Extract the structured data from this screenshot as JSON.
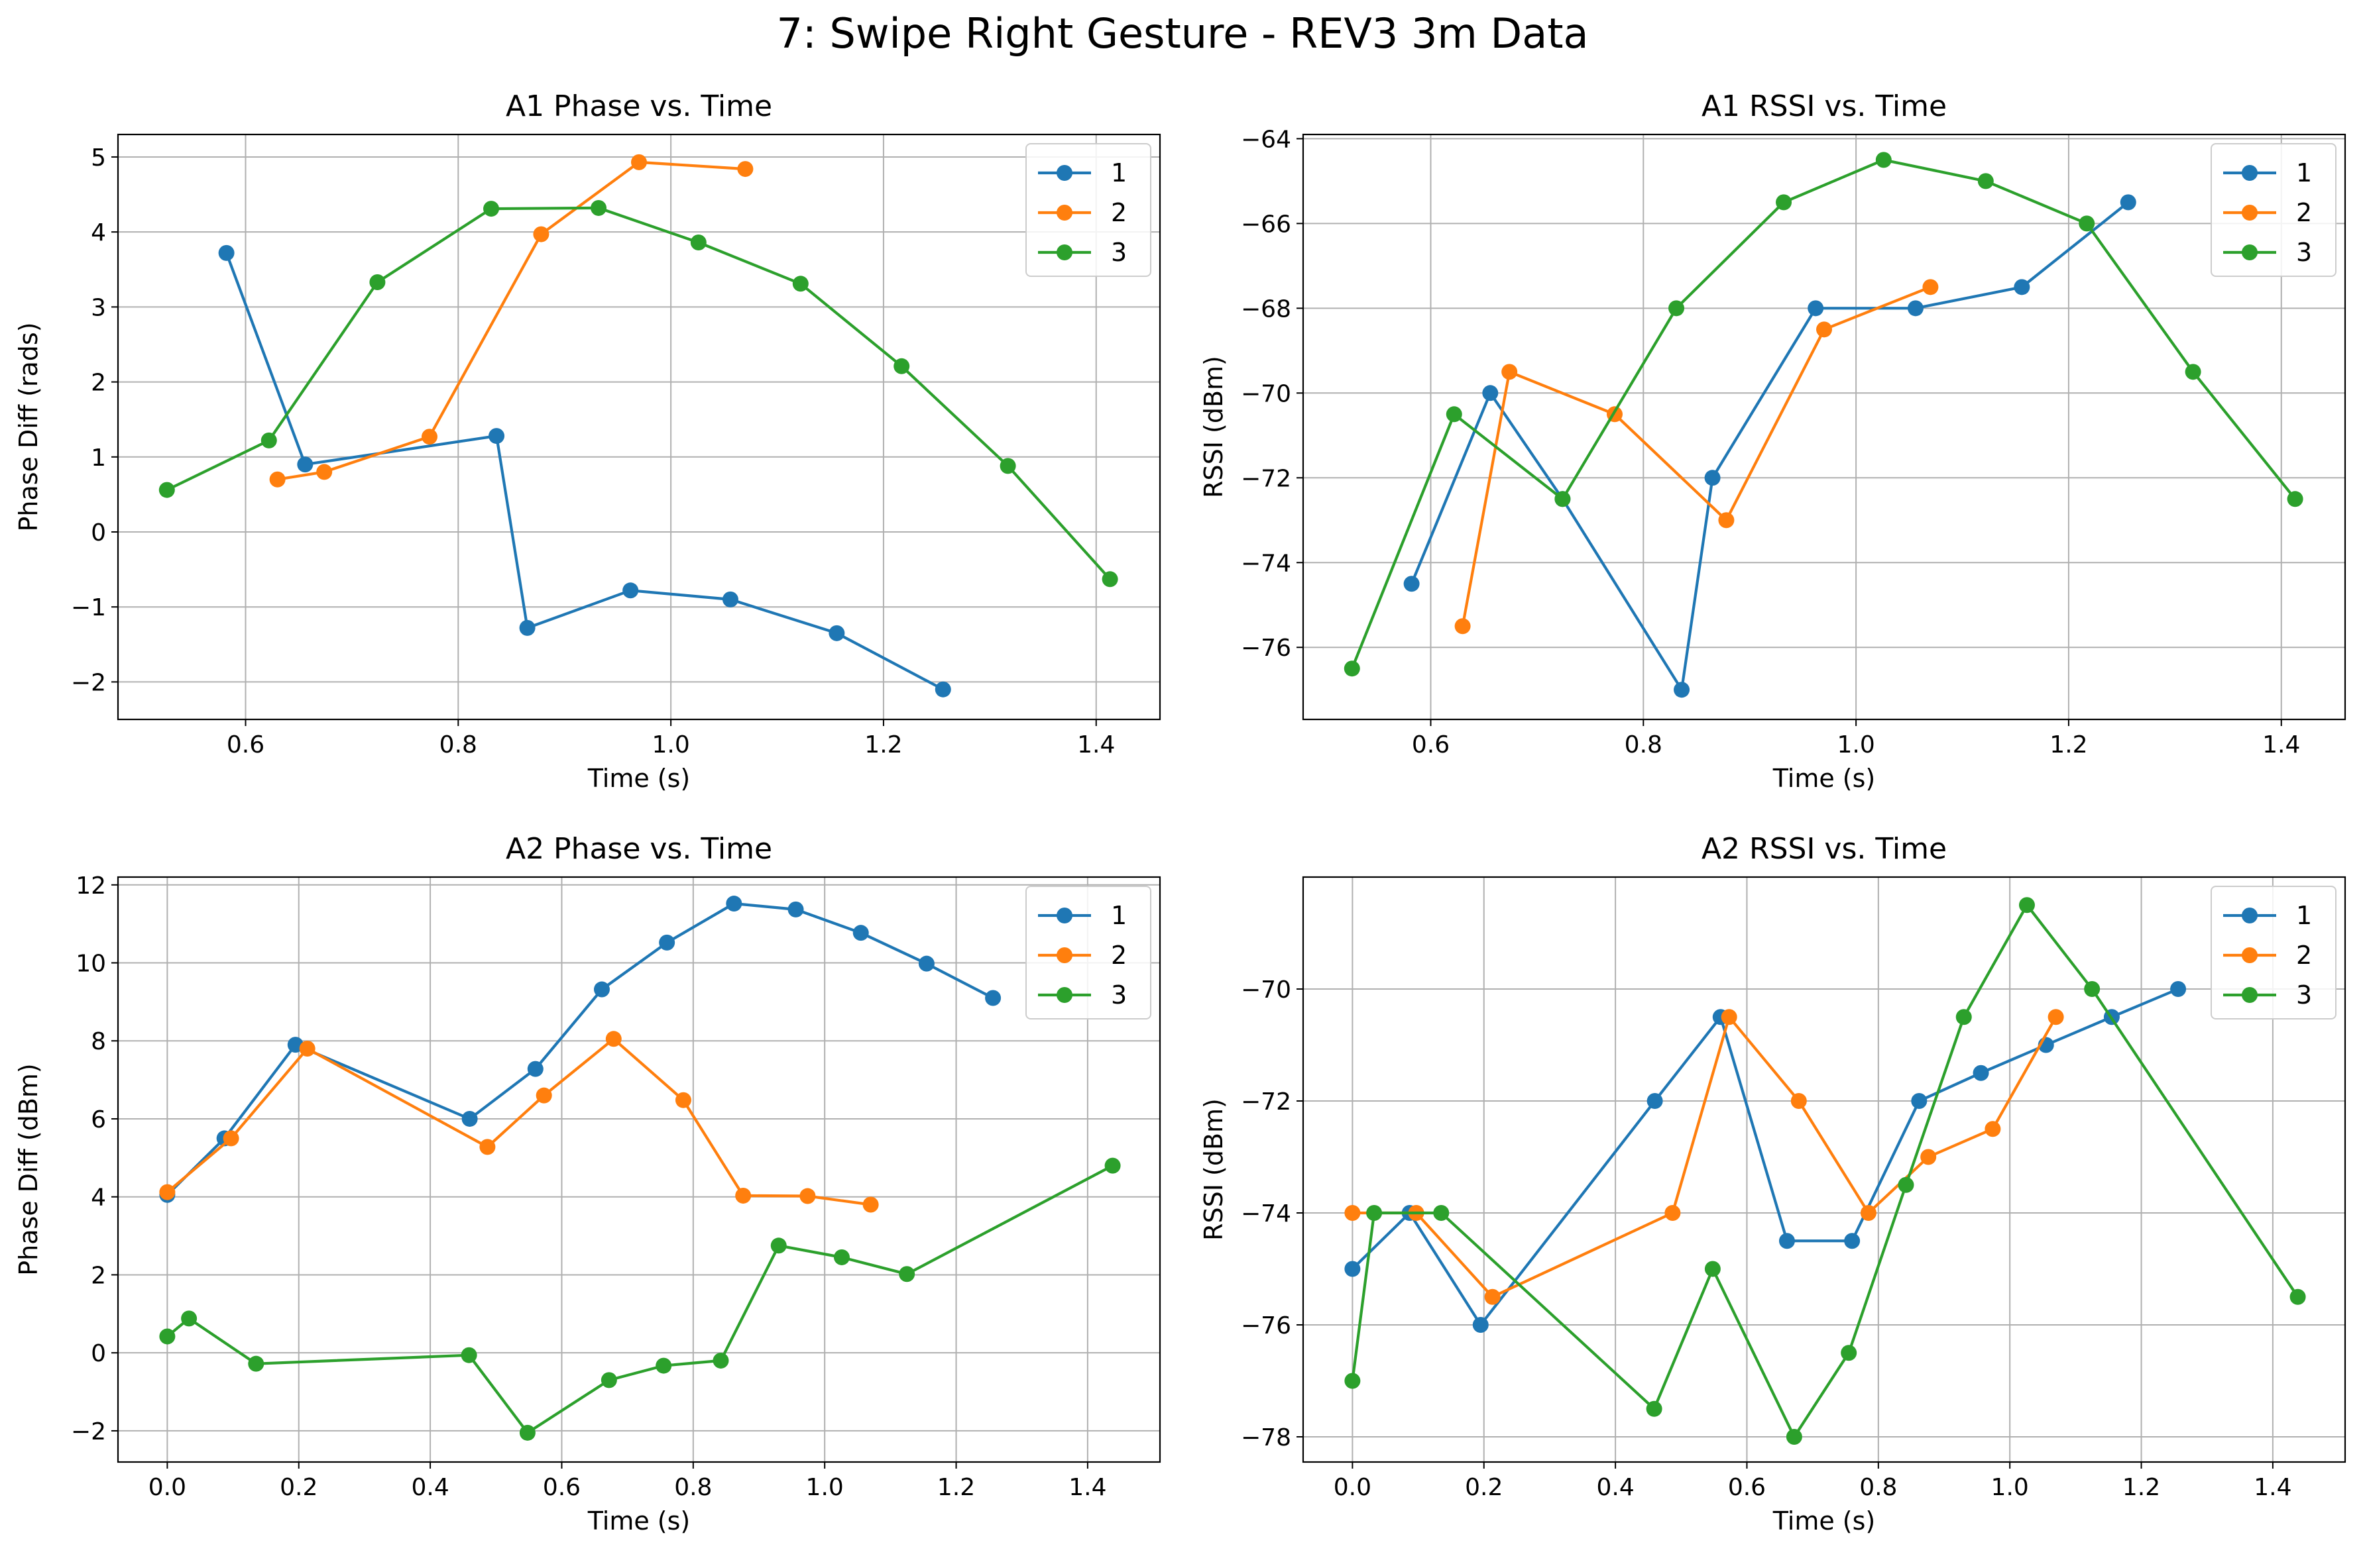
{
  "figure": {
    "title": "7: Swipe Right Gesture - REV3 3m Data"
  },
  "colors": {
    "series_1": "#1f77b4",
    "series_2": "#ff7f0e",
    "series_3": "#2ca02c",
    "grid": "#b0b0b0",
    "axes": "#000000"
  },
  "chart_data": [
    {
      "id": "a1-phase",
      "type": "line",
      "title": "A1 Phase vs. Time",
      "xlabel": "Time (s)",
      "ylabel": "Phase Diff (rads)",
      "xlim": [
        0.48,
        1.46
      ],
      "ylim": [
        -2.5,
        5.3
      ],
      "xticks": [
        0.6,
        0.8,
        1.0,
        1.2,
        1.4
      ],
      "xtick_labels": [
        "0.6",
        "0.8",
        "1.0",
        "1.2",
        "1.4"
      ],
      "yticks": [
        -2,
        -1,
        0,
        1,
        2,
        3,
        4,
        5
      ],
      "ytick_labels": [
        "−2",
        "−1",
        "0",
        "1",
        "2",
        "3",
        "4",
        "5"
      ],
      "grid": true,
      "legend": "top-right",
      "series": [
        {
          "name": "1",
          "x": [
            0.582,
            0.656,
            0.836,
            0.865,
            0.962,
            1.056,
            1.156,
            1.256
          ],
          "y": [
            3.72,
            0.9,
            1.28,
            -1.28,
            -0.78,
            -0.9,
            -1.35,
            -2.1
          ]
        },
        {
          "name": "2",
          "x": [
            0.63,
            0.674,
            0.773,
            0.878,
            0.97,
            1.07
          ],
          "y": [
            0.7,
            0.8,
            1.27,
            3.97,
            4.93,
            4.84
          ]
        },
        {
          "name": "3",
          "x": [
            0.526,
            0.622,
            0.724,
            0.831,
            0.932,
            1.026,
            1.122,
            1.217,
            1.317,
            1.413
          ],
          "y": [
            0.56,
            1.22,
            3.33,
            4.31,
            4.32,
            3.86,
            3.31,
            2.21,
            0.88,
            -0.63
          ]
        }
      ]
    },
    {
      "id": "a1-rssi",
      "type": "line",
      "title": "A1 RSSI vs. Time",
      "xlabel": "Time (s)",
      "ylabel": "RSSI (dBm)",
      "xlim": [
        0.48,
        1.46
      ],
      "ylim": [
        -77.7,
        -63.9
      ],
      "xticks": [
        0.6,
        0.8,
        1.0,
        1.2,
        1.4
      ],
      "xtick_labels": [
        "0.6",
        "0.8",
        "1.0",
        "1.2",
        "1.4"
      ],
      "yticks": [
        -76,
        -74,
        -72,
        -70,
        -68,
        -66,
        -64
      ],
      "ytick_labels": [
        "−76",
        "−74",
        "−72",
        "−70",
        "−68",
        "−66",
        "−64"
      ],
      "grid": true,
      "legend": "top-right",
      "series": [
        {
          "name": "1",
          "x": [
            0.582,
            0.656,
            0.724,
            0.836,
            0.865,
            0.962,
            1.056,
            1.156,
            1.256
          ],
          "y": [
            -74.5,
            -70.0,
            -72.5,
            -77.0,
            -72.0,
            -68.0,
            -68.0,
            -67.5,
            -65.5
          ]
        },
        {
          "name": "2",
          "x": [
            0.63,
            0.674,
            0.773,
            0.878,
            0.97,
            1.07
          ],
          "y": [
            -75.5,
            -69.5,
            -70.5,
            -73.0,
            -68.5,
            -67.5
          ]
        },
        {
          "name": "3",
          "x": [
            0.526,
            0.622,
            0.724,
            0.831,
            0.932,
            1.026,
            1.122,
            1.217,
            1.317,
            1.413
          ],
          "y": [
            -76.5,
            -70.5,
            -72.5,
            -68.0,
            -65.5,
            -64.5,
            -65.0,
            -66.0,
            -69.5,
            -72.5
          ]
        }
      ]
    },
    {
      "id": "a2-phase",
      "type": "line",
      "title": "A2 Phase vs. Time",
      "xlabel": "Time (s)",
      "ylabel": "Phase Diff (dBm)",
      "xlim": [
        -0.075,
        1.51
      ],
      "ylim": [
        -2.8,
        12.2
      ],
      "xticks": [
        0.0,
        0.2,
        0.4,
        0.6,
        0.8,
        1.0,
        1.2,
        1.4
      ],
      "xtick_labels": [
        "0.0",
        "0.2",
        "0.4",
        "0.6",
        "0.8",
        "1.0",
        "1.2",
        "1.4"
      ],
      "yticks": [
        -2,
        0,
        2,
        4,
        6,
        8,
        10,
        12
      ],
      "ytick_labels": [
        "−2",
        "0",
        "2",
        "4",
        "6",
        "8",
        "10",
        "12"
      ],
      "grid": true,
      "legend": "top-right",
      "series": [
        {
          "name": "1",
          "x": [
            0.0,
            0.087,
            0.195,
            0.46,
            0.56,
            0.661,
            0.76,
            0.862,
            0.956,
            1.055,
            1.155,
            1.256
          ],
          "y": [
            4.05,
            5.5,
            7.9,
            6.0,
            7.28,
            9.32,
            10.52,
            11.52,
            11.37,
            10.77,
            9.98,
            9.1
          ]
        },
        {
          "name": "2",
          "x": [
            0.0,
            0.097,
            0.213,
            0.487,
            0.573,
            0.679,
            0.785,
            0.876,
            0.974,
            1.07
          ],
          "y": [
            4.12,
            5.5,
            7.8,
            5.28,
            6.6,
            8.05,
            6.48,
            4.03,
            4.02,
            3.8
          ]
        },
        {
          "name": "3",
          "x": [
            0.0,
            0.033,
            0.135,
            0.459,
            0.548,
            0.672,
            0.755,
            0.842,
            0.93,
            1.026,
            1.125,
            1.438
          ],
          "y": [
            0.42,
            0.88,
            -0.28,
            -0.06,
            -2.05,
            -0.7,
            -0.33,
            -0.2,
            2.75,
            2.45,
            2.02,
            4.8
          ]
        }
      ]
    },
    {
      "id": "a2-rssi",
      "type": "line",
      "title": "A2 RSSI vs. Time",
      "xlabel": "Time (s)",
      "ylabel": "RSSI (dBm)",
      "xlim": [
        -0.075,
        1.51
      ],
      "ylim": [
        -78.45,
        -68.0
      ],
      "xticks": [
        0.0,
        0.2,
        0.4,
        0.6,
        0.8,
        1.0,
        1.2,
        1.4
      ],
      "xtick_labels": [
        "0.0",
        "0.2",
        "0.4",
        "0.6",
        "0.8",
        "1.0",
        "1.2",
        "1.4"
      ],
      "yticks": [
        -78,
        -76,
        -74,
        -72,
        -70
      ],
      "ytick_labels": [
        "−78",
        "−76",
        "−74",
        "−72",
        "−70"
      ],
      "grid": true,
      "legend": "top-right",
      "series": [
        {
          "name": "1",
          "x": [
            0.0,
            0.087,
            0.195,
            0.46,
            0.56,
            0.661,
            0.76,
            0.862,
            0.956,
            1.055,
            1.155,
            1.256
          ],
          "y": [
            -75.0,
            -74.0,
            -76.0,
            -72.0,
            -70.5,
            -74.5,
            -74.5,
            -72.0,
            -71.5,
            -71.0,
            -70.5,
            -70.0
          ]
        },
        {
          "name": "2",
          "x": [
            0.0,
            0.097,
            0.213,
            0.487,
            0.573,
            0.679,
            0.785,
            0.876,
            0.974,
            1.07
          ],
          "y": [
            -74.0,
            -74.0,
            -75.5,
            -74.0,
            -70.5,
            -72.0,
            -74.0,
            -73.0,
            -72.5,
            -70.5
          ]
        },
        {
          "name": "3",
          "x": [
            0.0,
            0.033,
            0.135,
            0.459,
            0.548,
            0.672,
            0.755,
            0.842,
            0.93,
            1.026,
            1.125,
            1.438
          ],
          "y": [
            -77.0,
            -74.0,
            -74.0,
            -77.5,
            -75.0,
            -78.0,
            -76.5,
            -73.5,
            -70.5,
            -68.5,
            -70.0,
            -75.5
          ]
        }
      ]
    }
  ]
}
